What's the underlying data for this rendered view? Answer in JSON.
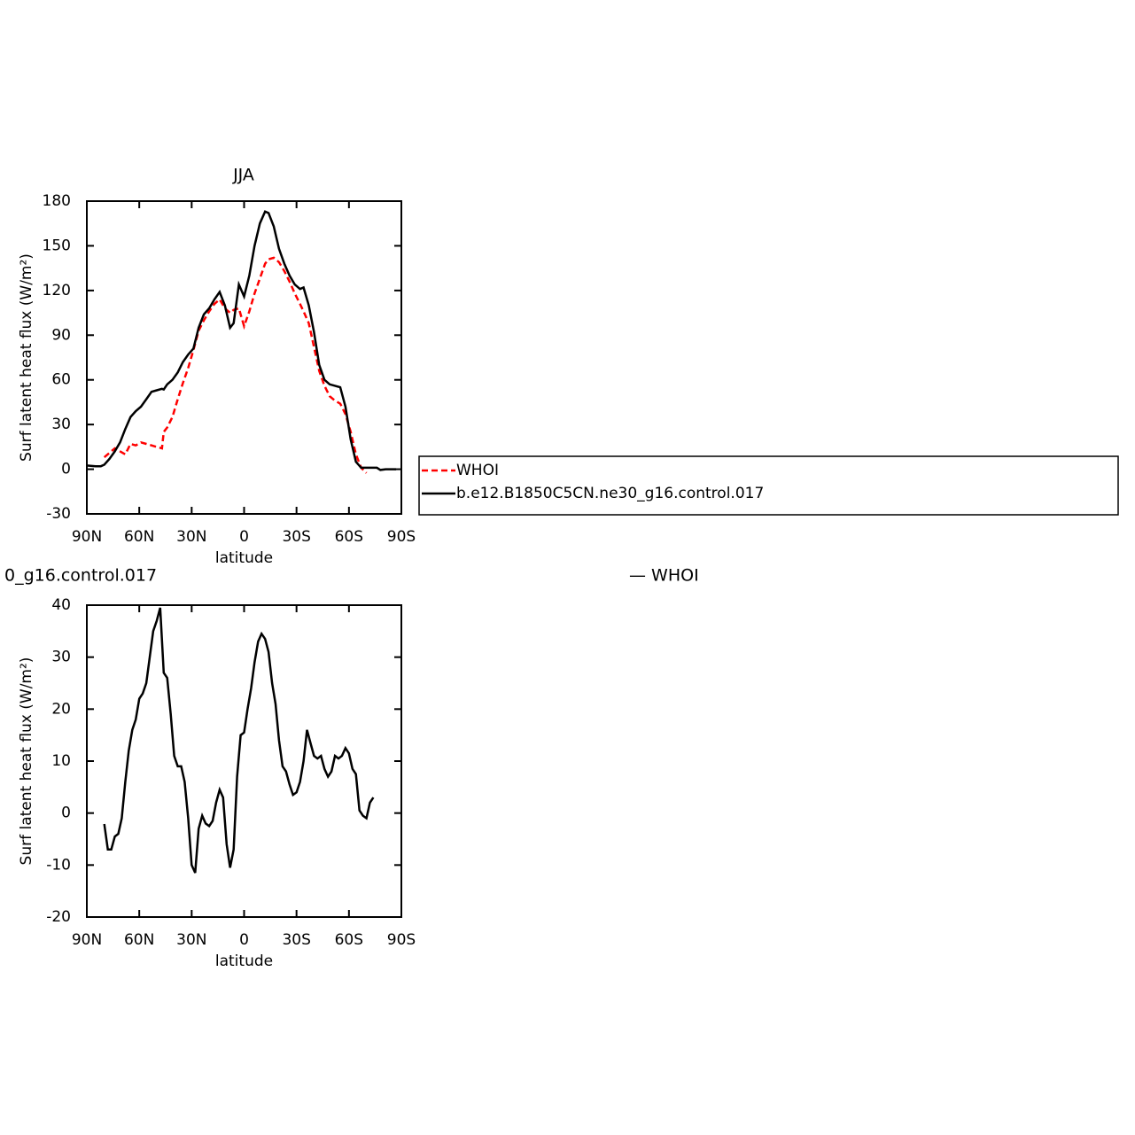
{
  "chart_data": [
    {
      "type": "line",
      "title": "JJA",
      "xlabel": "latitude",
      "ylabel": "Surf latent heat flux (W/m²)",
      "x": [
        90,
        85,
        82,
        80,
        77,
        74,
        71,
        68,
        65,
        62,
        59,
        56,
        53,
        50,
        47,
        46,
        44,
        41,
        38,
        35,
        32,
        29,
        26,
        23,
        20,
        17,
        14,
        11,
        8,
        6,
        3,
        0,
        -3,
        -6,
        -9,
        -12,
        -14,
        -17,
        -20,
        -23,
        -26,
        -29,
        -32,
        -34,
        -37,
        -40,
        -43,
        -46,
        -49,
        -52,
        -55,
        -58,
        -61,
        -64,
        -67,
        -70,
        -73,
        -76,
        -78,
        -81,
        -84,
        -87
      ],
      "series": [
        {
          "name": "WHOI",
          "color": "#ff0000",
          "line_style": "dashed",
          "values": [
            null,
            null,
            null,
            8,
            11,
            14,
            12,
            10,
            17,
            16,
            18,
            17,
            16,
            15,
            14,
            25,
            28,
            35,
            47,
            58,
            68,
            80,
            93,
            100,
            106,
            111,
            114,
            108,
            105,
            107,
            108,
            96,
            106,
            118,
            128,
            138,
            141,
            142,
            139,
            133,
            126,
            118,
            111,
            106,
            98,
            82,
            66,
            56,
            49,
            46,
            44,
            37,
            25,
            10,
            1,
            -2.5,
            null,
            null,
            null,
            null,
            null,
            null
          ]
        },
        {
          "name": "b.e12.B1850C5CN.ne30_g16.control.017",
          "color": "#000000",
          "line_style": "solid",
          "values": [
            2.5,
            2,
            2,
            3,
            7,
            12,
            18,
            27,
            35,
            39,
            42,
            47,
            52,
            53,
            54,
            53.5,
            57,
            60,
            65,
            72,
            77,
            81,
            95,
            104,
            108,
            114,
            119,
            110,
            95,
            98,
            124,
            116,
            130,
            150,
            165,
            173,
            172,
            163,
            148,
            138,
            130,
            124,
            121,
            122,
            110,
            92,
            70,
            60,
            57,
            56,
            55,
            42,
            20,
            5,
            1,
            1,
            1,
            1,
            -0.5,
            0,
            0,
            0
          ]
        }
      ],
      "xlim": [
        90,
        -90
      ],
      "ylim": [
        -30,
        180
      ],
      "xticks": [
        {
          "value": 90,
          "label": "90N"
        },
        {
          "value": 60,
          "label": "60N"
        },
        {
          "value": 30,
          "label": "30N"
        },
        0,
        {
          "value": -30,
          "label": "30S"
        },
        {
          "value": -60,
          "label": "60S"
        },
        {
          "value": -90,
          "label": "90S"
        }
      ],
      "yticks": [
        -30,
        0,
        30,
        60,
        90,
        120,
        150,
        180
      ],
      "legend": "right"
    },
    {
      "type": "line",
      "title": "0_g16.control.017",
      "annotations": [
        "— WHOI"
      ],
      "xlabel": "latitude",
      "ylabel": "Surf latent heat flux (W/m²)",
      "x": [
        80,
        78,
        76,
        74,
        72,
        70,
        68,
        66,
        64,
        62,
        60,
        58,
        56,
        54,
        52,
        50,
        48,
        46,
        44,
        42,
        40,
        38,
        36,
        34,
        32,
        30,
        28,
        26,
        24,
        22,
        20,
        18,
        16,
        14,
        12,
        10,
        8,
        6,
        4,
        2,
        0,
        -2,
        -4,
        -6,
        -8,
        -10,
        -12,
        -14,
        -16,
        -18,
        -20,
        -22,
        -24,
        -26,
        -28,
        -30,
        -32,
        -34,
        -36,
        -38,
        -40,
        -42,
        -44,
        -46,
        -48,
        -50,
        -52,
        -54,
        -56,
        -58,
        -60,
        -62,
        -64,
        -66,
        -68,
        -70,
        -72,
        -74
      ],
      "series": [
        {
          "color": "#000000",
          "line_style": "solid",
          "values": [
            -2.1,
            -7,
            -7,
            -4.5,
            -4,
            -1,
            6,
            12,
            16,
            18,
            22,
            23,
            25,
            30,
            35,
            37,
            39.5,
            27,
            26,
            19,
            11,
            9,
            9,
            6,
            -1,
            -10,
            -11.5,
            -3,
            -0.5,
            -2,
            -2.5,
            -1.5,
            2,
            4.5,
            3,
            -6,
            -10.5,
            -7,
            7,
            15,
            15.5,
            20,
            24,
            29,
            33,
            34.5,
            33.5,
            31,
            25,
            21,
            14,
            9,
            8,
            5.5,
            3.5,
            4,
            6,
            10,
            16,
            13.5,
            11,
            10.5,
            11,
            8.5,
            7,
            8,
            11,
            10.5,
            11,
            12.5,
            11.5,
            8.5,
            7.5,
            0.5,
            -0.5,
            -1,
            2,
            3
          ]
        }
      ],
      "xlim": [
        90,
        -90
      ],
      "ylim": [
        -20,
        40
      ],
      "xticks": [
        {
          "value": 90,
          "label": "90N"
        },
        {
          "value": 60,
          "label": "60N"
        },
        {
          "value": 30,
          "label": "30N"
        },
        0,
        {
          "value": -30,
          "label": "30S"
        },
        {
          "value": -60,
          "label": "60S"
        },
        {
          "value": -90,
          "label": "90S"
        }
      ],
      "yticks": [
        -20,
        -10,
        0,
        10,
        20,
        30,
        40
      ]
    }
  ]
}
